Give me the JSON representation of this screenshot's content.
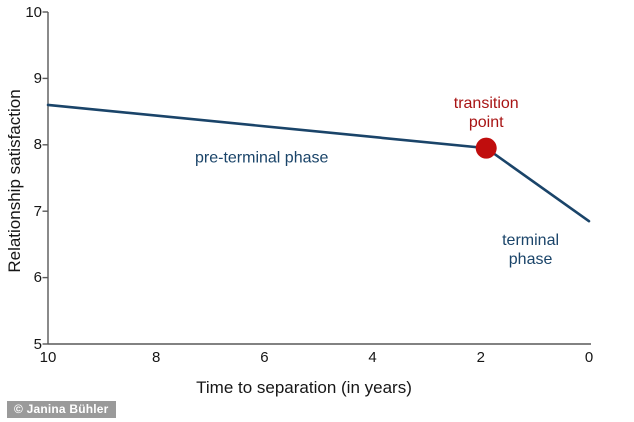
{
  "chart_data": {
    "type": "line",
    "title": "",
    "xlabel": "Time to separation (in years)",
    "ylabel": "Relationship satisfaction",
    "xlim": [
      10,
      0
    ],
    "ylim": [
      5,
      10
    ],
    "x_axis_reversed": true,
    "grid": false,
    "legend": "none",
    "x_ticks": [
      10,
      8,
      6,
      4,
      2,
      0
    ],
    "y_ticks": [
      5,
      6,
      7,
      8,
      9,
      10
    ],
    "series": [
      {
        "name": "relationship-satisfaction-trajectory",
        "color": "#1a4469",
        "x": [
          10,
          1.9,
          0
        ],
        "y": [
          8.6,
          7.95,
          6.85
        ]
      }
    ],
    "marker": {
      "name": "transition-point",
      "x": 1.9,
      "y": 7.95,
      "color": "#c00d0d"
    },
    "annotations": [
      {
        "id": "pre-terminal-label",
        "text": "pre-terminal phase",
        "x": 6.05,
        "y": 7.8,
        "color": "#1a4469"
      },
      {
        "id": "terminal-label",
        "text": "terminal phase",
        "x": 1.08,
        "y": 6.42,
        "color": "#1a4469"
      },
      {
        "id": "transition-label",
        "text": "transition\npoint",
        "x": 1.9,
        "y": 8.48,
        "color": "#a81414"
      }
    ]
  },
  "colors": {
    "axis": "#595959",
    "tick_label": "#161616",
    "background": "#ffffff"
  },
  "watermark": {
    "text": "© Janina Bühler",
    "bg": "#9a9a9a",
    "fg": "#ffffff"
  }
}
